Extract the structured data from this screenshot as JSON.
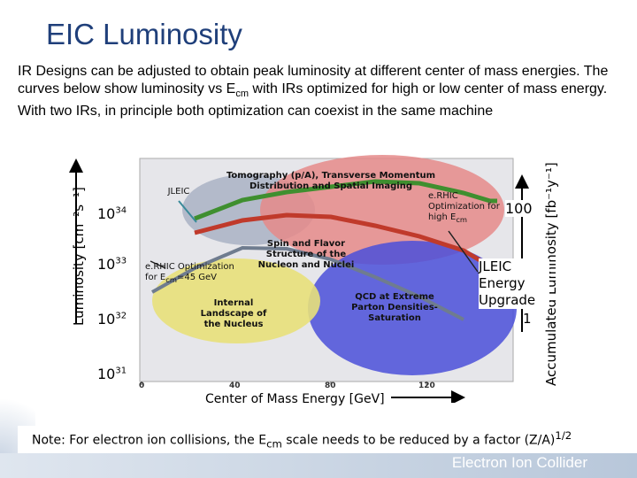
{
  "title": "EIC Luminosity",
  "intro": {
    "part1": "IR Designs can be adjusted to obtain peak luminosity at different center of mass energies. The curves below show luminosity vs E",
    "sub": "cm",
    "part2": "  with IRs optimized for high or low center of mass energy. With two IRs, in principle both optimization can coexist in the same machine"
  },
  "axes": {
    "left_label": "Luminosity [cm⁻²s⁻¹]",
    "right_label": "Accumulated Luminosity [fb⁻¹y⁻¹]",
    "left_ticks": [
      {
        "base": "10",
        "exp": "34"
      },
      {
        "base": "10",
        "exp": "33"
      },
      {
        "base": "10",
        "exp": "32"
      },
      {
        "base": "10",
        "exp": "31"
      }
    ],
    "right_ticks": [
      "100",
      "1"
    ],
    "x_ticks": [
      "0",
      "40",
      "80",
      "120"
    ],
    "x_label": "Center of Mass Energy [GeV]"
  },
  "labels": {
    "tomography": "Tomography (p/A), Transverse Momentum Distribution and Spatial Imaging",
    "jleic": "JLEIC",
    "erhic_high": "e.RHIC Optimization for high E",
    "erhic_high_sub": "cm",
    "spin_flavor": "Spin and Flavor Structure of the Nucleon and Nuclei",
    "erhic_low": "e.RHIC Optimization for E",
    "erhic_low_sub": "cm",
    "erhic_low_val": "=45 GeV",
    "internal": "Internal Landscape of the Nucleus",
    "qcd": "QCD at Extreme Parton Densities- Saturation",
    "jleic_upgrade": "JLEIC Energy Upgrade"
  },
  "note": {
    "text": "Note: For electron ion collisions, the E",
    "sub": "cm",
    "text2": " scale needs to be reduced by a factor (Z/A)",
    "sup": "1/2"
  },
  "footer": "Electron Ion Collider",
  "colors": {
    "title": "#1f3f7a",
    "green_curve": "#3f8f2f",
    "red_curve": "#c03a2b",
    "blue_region": "#4a4fd9",
    "red_region": "#e58a8a",
    "gray_region": "#a9b2c4",
    "yellow_region": "#e8e07a"
  }
}
